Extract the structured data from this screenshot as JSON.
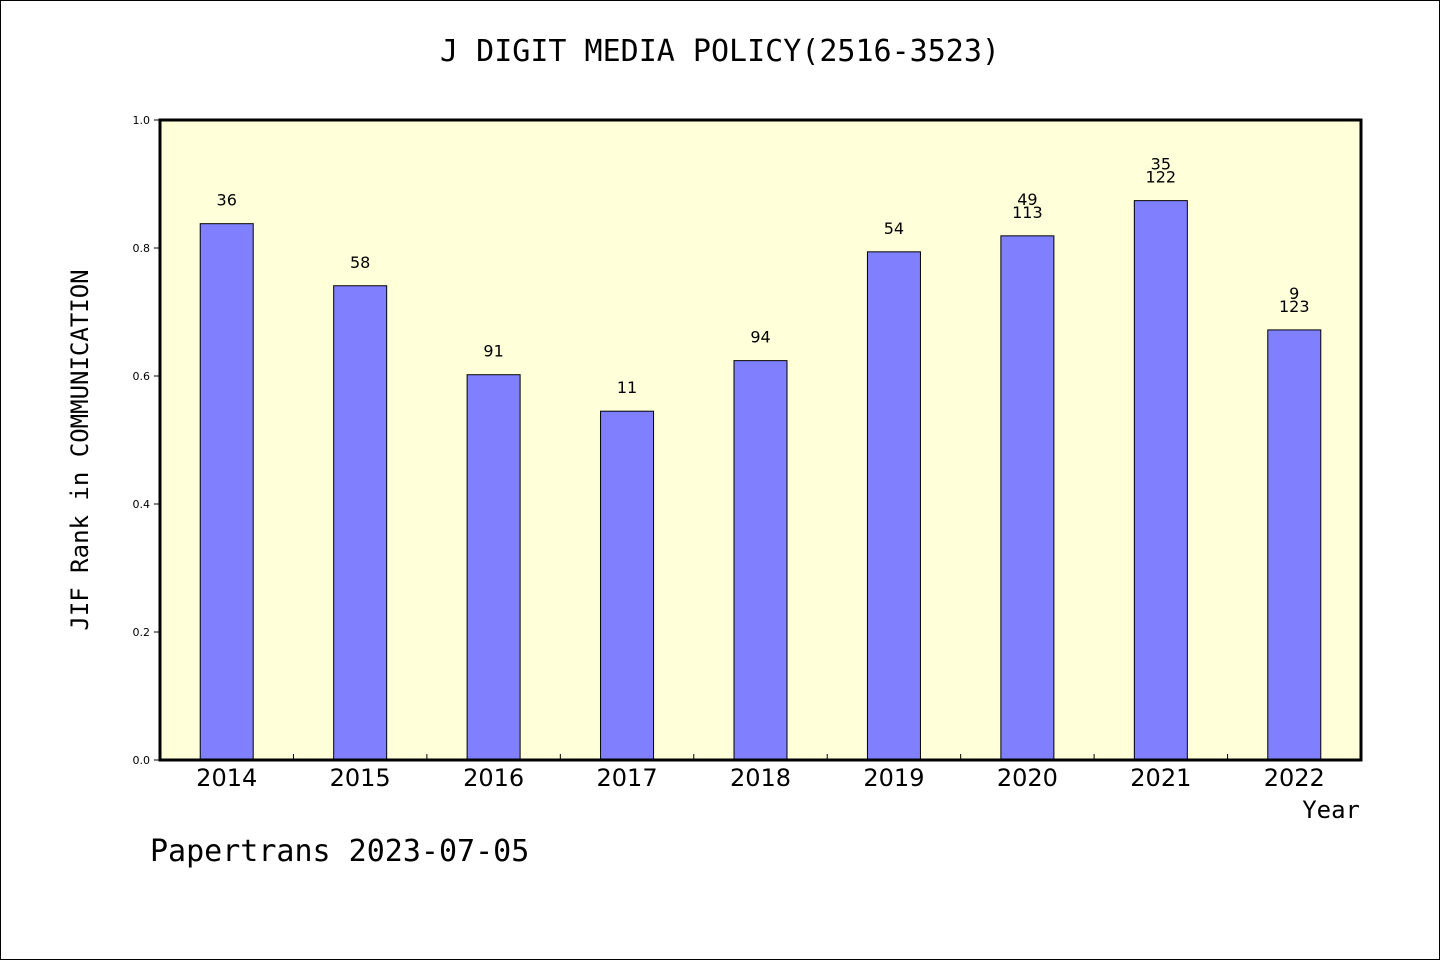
{
  "chart_data": {
    "type": "bar",
    "title": "J DIGIT MEDIA POLICY(2516-3523)",
    "xlabel": "Year",
    "ylabel": "JIF Rank in COMMUNICATION",
    "ylim": [
      0,
      1.0
    ],
    "yticks": [
      "0.0",
      "0.2",
      "0.4",
      "0.6",
      "0.8",
      "1.0"
    ],
    "categories": [
      "2014",
      "2015",
      "2016",
      "2017",
      "2018",
      "2019",
      "2020",
      "2021",
      "2022"
    ],
    "values": [
      0.838,
      0.741,
      0.602,
      0.545,
      0.624,
      0.794,
      0.819,
      0.874,
      0.672
    ],
    "bar_labels": [
      [
        "36"
      ],
      [
        "58"
      ],
      [
        "91"
      ],
      [
        "11"
      ],
      [
        "94"
      ],
      [
        "54"
      ],
      [
        "49",
        "113"
      ],
      [
        "35",
        "122"
      ],
      [
        "9",
        "123"
      ]
    ],
    "grid": false,
    "colors": {
      "bar_fill": "#8080ff",
      "plot_background": "#ffffd9"
    }
  },
  "footer": "Papertrans 2023-07-05"
}
